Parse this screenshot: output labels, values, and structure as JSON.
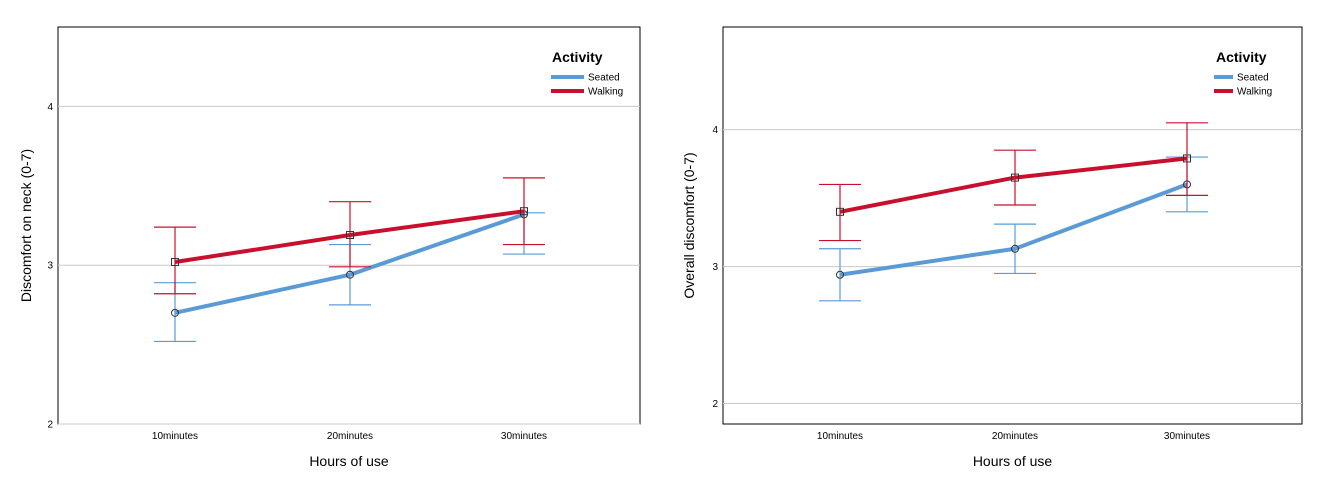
{
  "chart_data": [
    {
      "type": "line",
      "categories": [
        "10minutes",
        "20minutes",
        "30minutes"
      ],
      "xlabel": "Hours of use",
      "ylabel": "Discomfort on neck (0-7)",
      "ylim": [
        2,
        4.5
      ],
      "yticks": [
        "2",
        "3",
        "4"
      ],
      "legend": {
        "title": "Activity",
        "position": "top-right"
      },
      "grid": true,
      "series": [
        {
          "name": "Seated",
          "color": "#5b9bd5",
          "marker": "circle",
          "values": [
            2.7,
            2.94,
            3.32
          ],
          "ci_low": [
            2.52,
            2.75,
            3.07
          ],
          "ci_high": [
            2.89,
            3.13,
            3.33
          ]
        },
        {
          "name": "Walking",
          "color": "#c8102e",
          "marker": "square",
          "values": [
            3.02,
            3.19,
            3.34
          ],
          "ci_low": [
            2.82,
            2.99,
            3.13
          ],
          "ci_high": [
            3.24,
            3.4,
            3.55
          ]
        }
      ]
    },
    {
      "type": "line",
      "categories": [
        "10minutes",
        "20minutes",
        "30minutes"
      ],
      "xlabel": "Hours of use",
      "ylabel": "Overall discomfort (0-7)",
      "ylim": [
        1.85,
        4.75
      ],
      "yticks": [
        "2",
        "3",
        "4"
      ],
      "legend": {
        "title": "Activity",
        "position": "top-right"
      },
      "grid": true,
      "series": [
        {
          "name": "Seated",
          "color": "#5b9bd5",
          "marker": "circle",
          "values": [
            2.94,
            3.13,
            3.6
          ],
          "ci_low": [
            2.75,
            2.95,
            3.4
          ],
          "ci_high": [
            3.13,
            3.31,
            3.8
          ]
        },
        {
          "name": "Walking",
          "color": "#c8102e",
          "marker": "square",
          "values": [
            3.4,
            3.65,
            3.79
          ],
          "ci_low": [
            3.19,
            3.45,
            3.52
          ],
          "ci_high": [
            3.6,
            3.85,
            4.05
          ]
        }
      ]
    }
  ]
}
